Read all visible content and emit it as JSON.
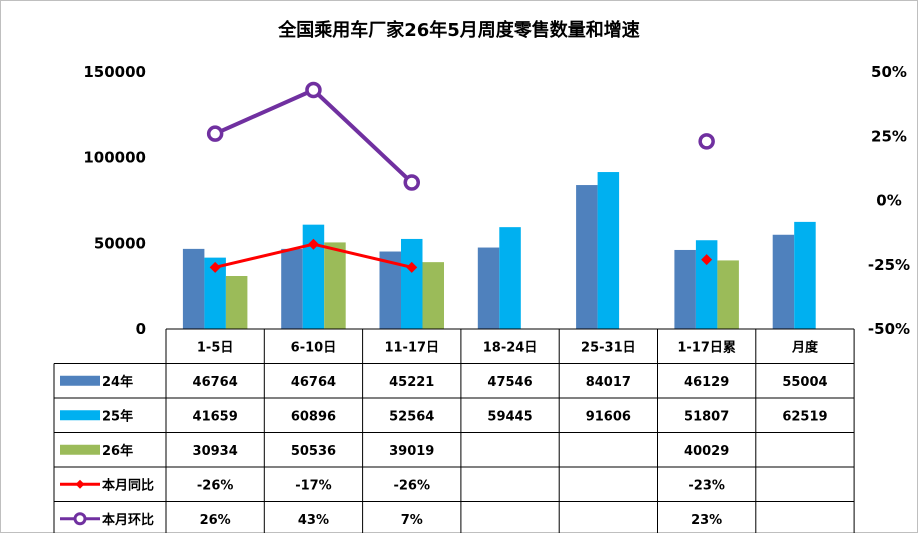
{
  "chart_data": {
    "type": "bar",
    "title": "全国乘用车厂家26年5月周度零售数量和增速",
    "categories": [
      "1-5日",
      "6-10日",
      "11-17日",
      "18-24日",
      "25-31日",
      "1-17日累",
      "月度"
    ],
    "y_left": {
      "range": [
        0,
        150000
      ],
      "ticks": [
        "0",
        "50000",
        "100000",
        "150000"
      ]
    },
    "y_right": {
      "range": [
        -0.5,
        0.5
      ],
      "ticks": [
        "50%",
        "25%",
        "0%",
        "-25%",
        "-50%"
      ]
    },
    "bar_series": [
      {
        "name": "24年",
        "color": "#4f81bd",
        "values": [
          46764,
          46764,
          45221,
          47546,
          84017,
          46129,
          55004
        ],
        "labels": [
          "46764",
          "46764",
          "45221",
          "47546",
          "84017",
          "46129",
          "55004"
        ]
      },
      {
        "name": "25年",
        "color": "#00b0f0",
        "values": [
          41659,
          60896,
          52564,
          59445,
          91606,
          51807,
          62519
        ],
        "labels": [
          "41659",
          "60896",
          "52564",
          "59445",
          "91606",
          "51807",
          "62519"
        ]
      },
      {
        "name": "26年",
        "color": "#9bbb59",
        "values": [
          30934,
          50536,
          39019,
          null,
          null,
          40029,
          null
        ],
        "labels": [
          "30934",
          "50536",
          "39019",
          "",
          "",
          "40029",
          ""
        ]
      }
    ],
    "line_series": [
      {
        "name": "本月同比",
        "color": "#ff0000",
        "values": [
          -0.26,
          -0.17,
          -0.26,
          null,
          null,
          -0.23,
          null
        ],
        "labels": [
          "-26%",
          "-17%",
          "-26%",
          "",
          "",
          "-23%",
          ""
        ]
      },
      {
        "name": "本月环比",
        "color": "#7030a0",
        "values": [
          0.26,
          0.43,
          0.07,
          null,
          null,
          0.23,
          null
        ],
        "labels": [
          "26%",
          "43%",
          "7%",
          "",
          "",
          "23%",
          ""
        ]
      }
    ],
    "grid": false,
    "legend": "table-left"
  }
}
